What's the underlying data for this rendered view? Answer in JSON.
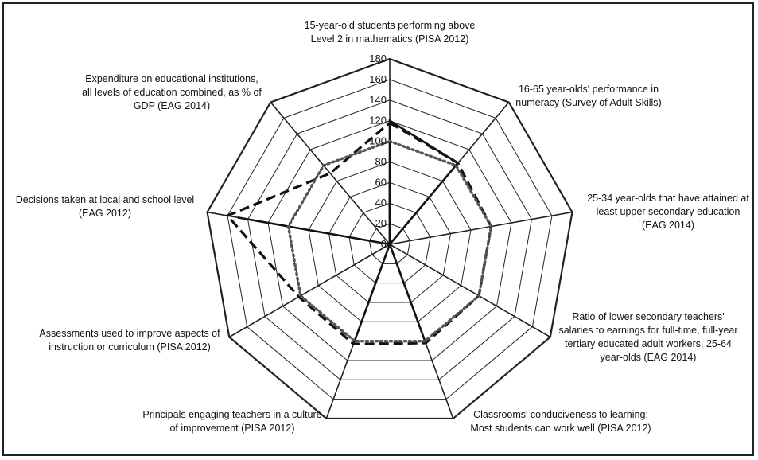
{
  "chart_data": {
    "type": "radar",
    "title": "",
    "axes": [
      {
        "label": [
          "15-year-old students performing above",
          "Level 2 in mathematics (PISA 2012)"
        ]
      },
      {
        "label": [
          "16-65 year-olds' performance in",
          "numeracy (Survey of Adult Skills)"
        ]
      },
      {
        "label": [
          "25-34 year-olds that have attained at",
          "least upper secondary education",
          "(EAG 2014)"
        ]
      },
      {
        "label": [
          "Ratio of lower secondary teachers'",
          "salaries to earnings for full-time, full-year",
          "tertiary educated adult workers, 25-64",
          "year-olds (EAG 2014)"
        ]
      },
      {
        "label": [
          "Classrooms' conduciveness to learning:",
          "Most students can work well (PISA 2012)"
        ]
      },
      {
        "label": [
          "Principals engaging teachers in a culture",
          "of improvement (PISA 2012)"
        ]
      },
      {
        "label": [
          "Assessments used to improve aspects of",
          "instruction or curriculum (PISA 2012)"
        ]
      },
      {
        "label": [
          "Decisions taken at local and school level",
          "(EAG 2012)"
        ]
      },
      {
        "label": [
          "Expenditure on educational institutions,",
          "all levels of education combined, as % of",
          "GDP (EAG 2014)"
        ]
      }
    ],
    "rmax": 180,
    "ticks": [
      "0",
      "20",
      "40",
      "60",
      "80",
      "100",
      "120",
      "140",
      "160",
      "180"
    ],
    "series": [
      {
        "style": "solid",
        "values": [
          120,
          103,
          0,
          0,
          0,
          103,
          0,
          0,
          0
        ]
      },
      {
        "style": "solid",
        "values": [
          60,
          0,
          0,
          0,
          103,
          0,
          0,
          150,
          0
        ]
      },
      {
        "style": "dashed",
        "values": [
          118,
          103,
          100,
          100,
          102,
          103,
          102,
          160,
          90
        ]
      },
      {
        "style": "dotted",
        "values": [
          100,
          100,
          100,
          100,
          100,
          100,
          100,
          100,
          100
        ]
      }
    ],
    "legend": "none",
    "grid": true
  }
}
